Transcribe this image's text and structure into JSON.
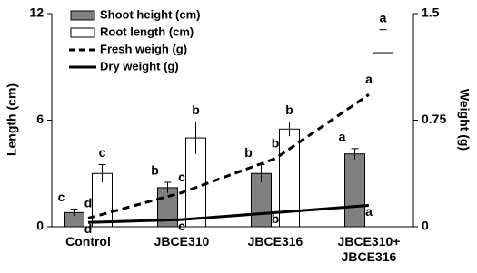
{
  "chart_data": {
    "type": "bar_line",
    "categories": [
      "Control",
      "JBCE310",
      "JBCE316",
      "JBCE310+\nJBCE316"
    ],
    "ylabel": "Length (cm)",
    "y2label": "Weight (g)",
    "ylim": [
      0,
      12
    ],
    "yticks": [
      0,
      6,
      12
    ],
    "y2lim": [
      0,
      1.5
    ],
    "y2ticks": [
      0,
      0.75,
      1.5
    ],
    "legend": "upper left",
    "series": [
      {
        "name": "Shoot height (cm)",
        "kind": "bar",
        "color": "#808080",
        "values": [
          0.8,
          2.2,
          3.0,
          4.1
        ],
        "errors": [
          0.2,
          0.3,
          0.5,
          0.3
        ],
        "letters": [
          "c",
          "b",
          "b",
          "a"
        ]
      },
      {
        "name": "Root length (cm)",
        "kind": "bar",
        "color": "#ffffff",
        "values": [
          3.0,
          5.0,
          5.5,
          9.8
        ],
        "errors": [
          0.5,
          0.9,
          0.4,
          1.3
        ],
        "letters": [
          "c",
          "b",
          "b",
          "a"
        ]
      },
      {
        "name": "Fresh weigh (g)",
        "kind": "line",
        "dash": true,
        "axis": "y2",
        "color": "#000000",
        "values": [
          0.06,
          0.24,
          0.48,
          0.93
        ],
        "letters": [
          "d",
          "c",
          "b",
          "a"
        ]
      },
      {
        "name": "Dry weight (g)",
        "kind": "line",
        "dash": false,
        "axis": "y2",
        "color": "#000000",
        "values": [
          0.03,
          0.05,
          0.1,
          0.15
        ],
        "letters": [
          "d",
          "c",
          "b",
          "a"
        ]
      }
    ]
  }
}
